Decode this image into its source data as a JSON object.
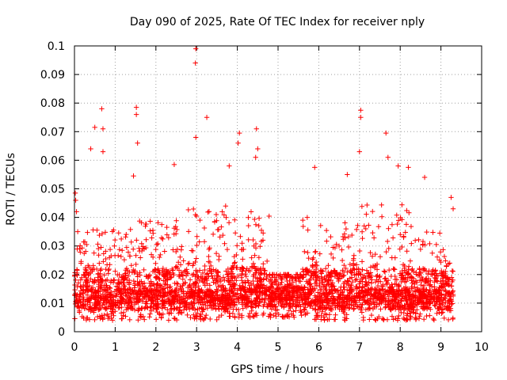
{
  "chart_data": {
    "type": "scatter",
    "title": "Day 090 of 2025, Rate Of TEC Index for receiver nply",
    "xlabel": "GPS time / hours",
    "ylabel": "ROTI / TECUs",
    "xlim": [
      0,
      10
    ],
    "ylim": [
      0,
      0.1
    ],
    "x_ticks": [
      "0",
      "1",
      "2",
      "3",
      "4",
      "5",
      "6",
      "7",
      "8",
      "9",
      "10"
    ],
    "y_ticks": [
      "0",
      "0.01",
      "0.02",
      "0.03",
      "0.04",
      "0.05",
      "0.06",
      "0.07",
      "0.08",
      "0.09",
      "0.1"
    ],
    "grid": true,
    "marker": "+",
    "color": "#ff0000",
    "x_range_of_data": [
      0,
      9.3
    ],
    "notable_points": [
      {
        "x": 2.98,
        "y": 0.099
      },
      {
        "x": 2.97,
        "y": 0.094
      },
      {
        "x": 1.52,
        "y": 0.0785
      },
      {
        "x": 1.52,
        "y": 0.076
      },
      {
        "x": 0.67,
        "y": 0.078
      },
      {
        "x": 7.03,
        "y": 0.0775
      },
      {
        "x": 7.03,
        "y": 0.075
      },
      {
        "x": 3.25,
        "y": 0.075
      },
      {
        "x": 0.7,
        "y": 0.071
      },
      {
        "x": 0.5,
        "y": 0.0715
      },
      {
        "x": 4.47,
        "y": 0.071
      },
      {
        "x": 4.05,
        "y": 0.0695
      },
      {
        "x": 7.65,
        "y": 0.0695
      },
      {
        "x": 2.98,
        "y": 0.068
      },
      {
        "x": 4.02,
        "y": 0.066
      },
      {
        "x": 1.55,
        "y": 0.066
      },
      {
        "x": 0.4,
        "y": 0.064
      },
      {
        "x": 4.5,
        "y": 0.064
      },
      {
        "x": 0.7,
        "y": 0.063
      },
      {
        "x": 7.0,
        "y": 0.063
      },
      {
        "x": 7.7,
        "y": 0.061
      },
      {
        "x": 4.45,
        "y": 0.061
      },
      {
        "x": 2.45,
        "y": 0.0585
      },
      {
        "x": 3.8,
        "y": 0.058
      },
      {
        "x": 5.9,
        "y": 0.0575
      },
      {
        "x": 7.95,
        "y": 0.058
      },
      {
        "x": 8.2,
        "y": 0.0575
      },
      {
        "x": 1.45,
        "y": 0.0545
      },
      {
        "x": 8.6,
        "y": 0.054
      },
      {
        "x": 6.7,
        "y": 0.055
      },
      {
        "x": 0.02,
        "y": 0.0485
      },
      {
        "x": 0.03,
        "y": 0.046
      },
      {
        "x": 9.25,
        "y": 0.047
      },
      {
        "x": 9.3,
        "y": 0.043
      },
      {
        "x": 0.05,
        "y": 0.042
      },
      {
        "x": 0.08,
        "y": 0.035
      }
    ],
    "density_bands": [
      {
        "x_from": 0.0,
        "x_to": 1.2,
        "typical_min": 0.004,
        "typical_max": 0.036
      },
      {
        "x_from": 1.2,
        "x_to": 2.5,
        "typical_min": 0.004,
        "typical_max": 0.04
      },
      {
        "x_from": 2.5,
        "x_to": 3.8,
        "typical_min": 0.004,
        "typical_max": 0.045
      },
      {
        "x_from": 3.8,
        "x_to": 4.8,
        "typical_min": 0.005,
        "typical_max": 0.042
      },
      {
        "x_from": 4.8,
        "x_to": 5.6,
        "typical_min": 0.005,
        "typical_max": 0.02
      },
      {
        "x_from": 5.6,
        "x_to": 7.0,
        "typical_min": 0.004,
        "typical_max": 0.04
      },
      {
        "x_from": 7.0,
        "x_to": 8.3,
        "typical_min": 0.004,
        "typical_max": 0.045
      },
      {
        "x_from": 8.3,
        "x_to": 9.3,
        "typical_min": 0.004,
        "typical_max": 0.035
      }
    ]
  }
}
